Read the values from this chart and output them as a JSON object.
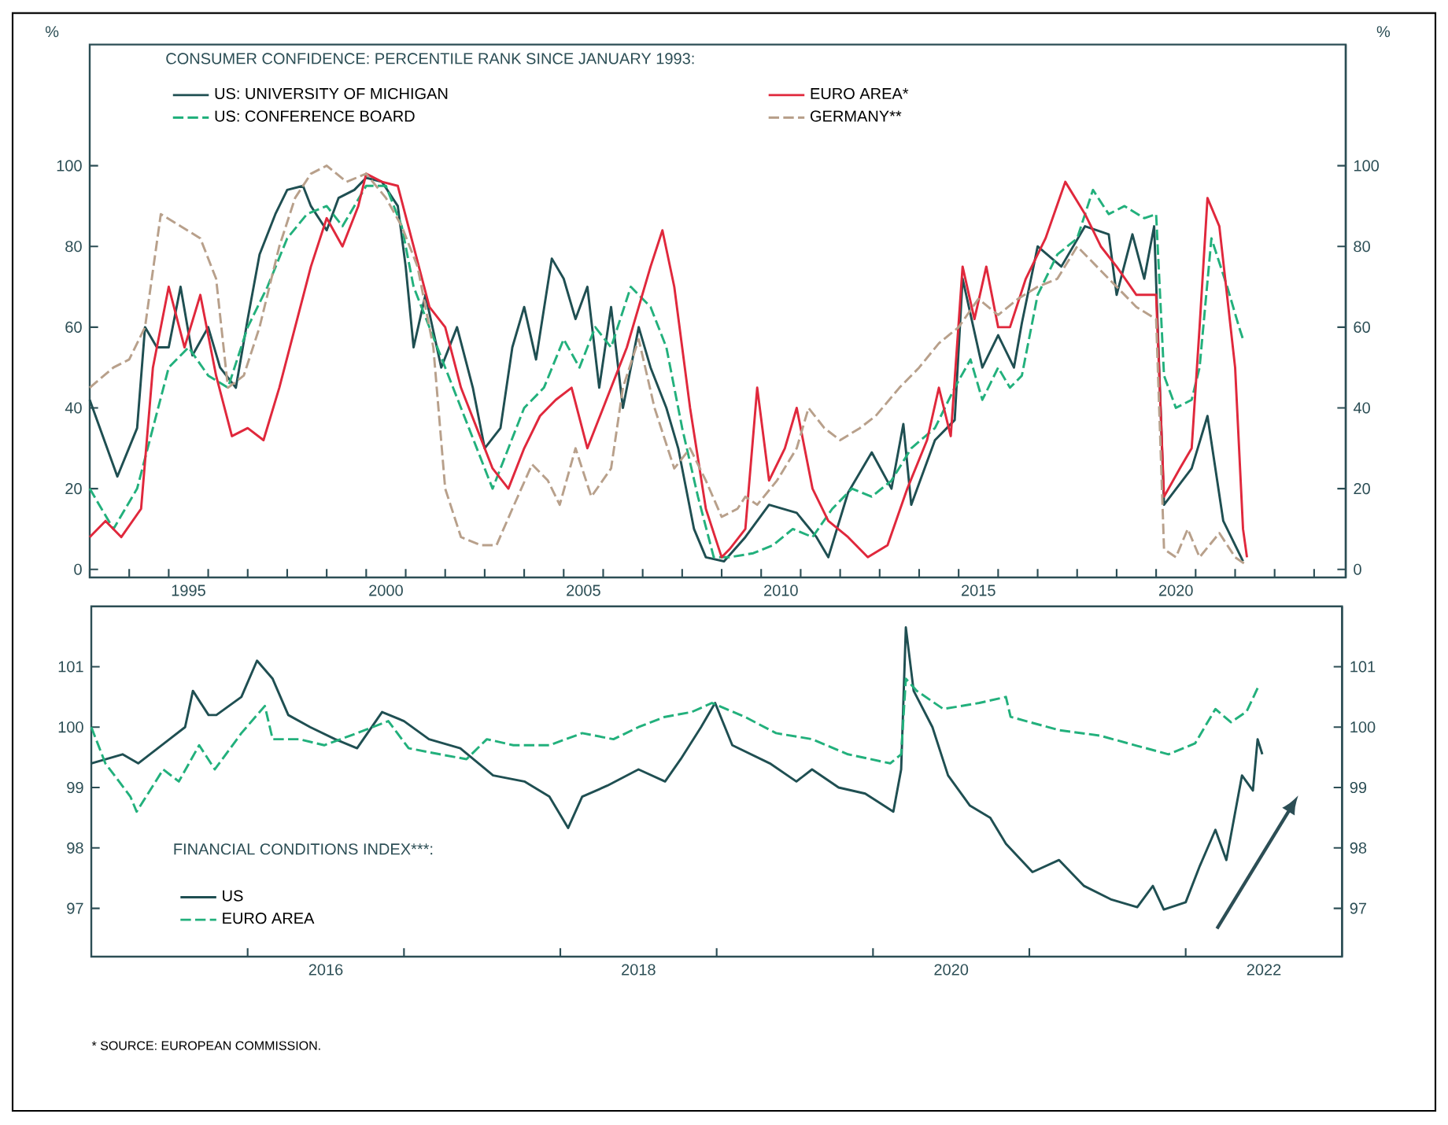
{
  "chart_data": [
    {
      "type": "line",
      "legend_title": "CONSUMER CONFIDENCE: PERCENTILE RANK SINCE JANUARY 1993:",
      "legend": "top left",
      "ylabel": "%",
      "y2label": "%",
      "xlim": [
        1993,
        2024.8
      ],
      "xticks": [
        {
          "value": 1993,
          "label": null
        },
        {
          "value": 1994,
          "label": null
        },
        {
          "value": 1995,
          "label": null
        },
        {
          "value": 1996,
          "label": null
        },
        {
          "value": 1997,
          "label": null
        },
        {
          "value": 1998,
          "label": null
        },
        {
          "value": 1999,
          "label": null
        },
        {
          "value": 2000,
          "label": null
        },
        {
          "value": 2001,
          "label": null
        },
        {
          "value": 2002,
          "label": null
        },
        {
          "value": 2003,
          "label": null
        },
        {
          "value": 2004,
          "label": null
        },
        {
          "value": 2005,
          "label": null
        },
        {
          "value": 2006,
          "label": null
        },
        {
          "value": 2007,
          "label": null
        },
        {
          "value": 2008,
          "label": null
        },
        {
          "value": 2009,
          "label": null
        },
        {
          "value": 2010,
          "label": null
        },
        {
          "value": 2011,
          "label": null
        },
        {
          "value": 2012,
          "label": null
        },
        {
          "value": 2013,
          "label": null
        },
        {
          "value": 2014,
          "label": null
        },
        {
          "value": 2015,
          "label": null
        },
        {
          "value": 2016,
          "label": null
        },
        {
          "value": 2017,
          "label": null
        },
        {
          "value": 2018,
          "label": null
        },
        {
          "value": 2019,
          "label": null
        },
        {
          "value": 2020,
          "label": null
        },
        {
          "value": 2021,
          "label": null
        },
        {
          "value": 2022,
          "label": null
        },
        {
          "value": 2023,
          "label": null
        },
        {
          "value": 2024,
          "label": null
        },
        {
          "value": 1995.5,
          "label": "1995"
        },
        {
          "value": 2000.5,
          "label": "2000"
        },
        {
          "value": 2005.5,
          "label": "2005"
        },
        {
          "value": 2010.5,
          "label": "2010"
        },
        {
          "value": 2015.5,
          "label": "2015"
        },
        {
          "value": 2020.5,
          "label": "2020"
        }
      ],
      "ylim": [
        -2,
        130
      ],
      "yticks": [
        0,
        20,
        40,
        60,
        80,
        100
      ],
      "y2lim": [
        -2,
        130
      ],
      "y2ticks": [
        0,
        20,
        40,
        60,
        80,
        100
      ],
      "series": [
        {
          "name": "US: UNIVERSITY OF MICHIGAN",
          "color": "#1f4f52",
          "line_style": "solid",
          "x": [
            1993.0,
            1993.7,
            1994.2,
            1994.4,
            1994.7,
            1995.0,
            1995.3,
            1995.6,
            1996.0,
            1996.3,
            1996.7,
            1997.0,
            1997.3,
            1997.7,
            1998.0,
            1998.4,
            1998.6,
            1999.0,
            1999.3,
            1999.7,
            2000.0,
            2000.4,
            2000.8,
            2001.0,
            2001.2,
            2001.5,
            2001.9,
            2002.3,
            2002.7,
            2003.0,
            2003.4,
            2003.7,
            2004.0,
            2004.3,
            2004.7,
            2005.0,
            2005.3,
            2005.6,
            2005.9,
            2006.2,
            2006.5,
            2006.9,
            2007.2,
            2007.6,
            2007.9,
            2008.3,
            2008.6,
            2009.06,
            2009.6,
            2010.2,
            2010.9,
            2011.4,
            2011.7,
            2012.2,
            2012.8,
            2013.3,
            2013.6,
            2013.8,
            2014.4,
            2014.9,
            2015.1,
            2015.6,
            2016.0,
            2016.4,
            2016.6,
            2017.0,
            2017.6,
            2018.2,
            2018.8,
            2019.0,
            2019.4,
            2019.7,
            2019.95,
            2020.2,
            2020.9,
            2021.3,
            2021.7,
            2022.2
          ],
          "values": [
            42,
            23,
            35,
            60,
            55,
            55,
            70,
            53,
            60,
            50,
            45,
            62,
            78,
            88,
            94,
            95,
            90,
            84,
            92,
            94,
            97,
            96,
            90,
            75,
            55,
            68,
            50,
            60,
            45,
            30,
            35,
            55,
            65,
            52,
            77,
            72,
            62,
            70,
            45,
            65,
            40,
            60,
            50,
            40,
            30,
            10,
            3,
            2,
            8,
            16,
            14,
            8,
            3,
            19,
            29,
            20,
            36,
            16,
            32,
            37,
            72,
            50,
            58,
            50,
            61,
            80,
            75,
            85,
            83,
            68,
            83,
            72,
            85,
            16,
            25,
            38,
            12,
            2
          ]
        },
        {
          "name": "US: CONFERENCE BOARD",
          "color": "#22b07c",
          "line_style": "dashed",
          "x": [
            1993.0,
            1993.6,
            1994.2,
            1994.6,
            1995.0,
            1995.5,
            1996.0,
            1996.5,
            1997.0,
            1997.5,
            1998.0,
            1998.5,
            1999.0,
            1999.4,
            2000.0,
            2000.5,
            2000.9,
            2001.2,
            2001.6,
            2002.0,
            2002.4,
            2002.8,
            2003.2,
            2003.6,
            2004.0,
            2004.5,
            2005.0,
            2005.4,
            2005.8,
            2006.2,
            2006.7,
            2007.2,
            2007.6,
            2008.0,
            2008.4,
            2008.8,
            2009.2,
            2009.8,
            2010.3,
            2010.8,
            2011.3,
            2011.8,
            2012.3,
            2012.8,
            2013.3,
            2013.8,
            2014.4,
            2014.9,
            2015.3,
            2015.6,
            2016.0,
            2016.3,
            2016.6,
            2017.0,
            2017.5,
            2018.0,
            2018.4,
            2018.8,
            2019.2,
            2019.7,
            2020.0,
            2020.2,
            2020.5,
            2020.9,
            2021.1,
            2021.4,
            2021.8,
            2022.1,
            2022.2
          ],
          "values": [
            20,
            10,
            20,
            35,
            50,
            55,
            48,
            45,
            60,
            70,
            82,
            88,
            90,
            85,
            95,
            95,
            85,
            70,
            60,
            50,
            40,
            30,
            20,
            30,
            40,
            45,
            57,
            50,
            60,
            55,
            70,
            65,
            55,
            35,
            18,
            3,
            3,
            4,
            6,
            10,
            8,
            15,
            20,
            18,
            22,
            30,
            35,
            45,
            52,
            42,
            50,
            45,
            48,
            68,
            78,
            82,
            94,
            88,
            90,
            87,
            88,
            48,
            40,
            42,
            50,
            82,
            70,
            60,
            57
          ]
        },
        {
          "name": "EURO AREA*",
          "color": "#e0283c",
          "line_style": "solid",
          "x": [
            1993.0,
            1993.4,
            1993.8,
            1994.3,
            1994.6,
            1995.0,
            1995.4,
            1995.8,
            1996.2,
            1996.6,
            1997.0,
            1997.4,
            1997.8,
            1998.2,
            1998.6,
            1999.0,
            1999.4,
            1999.8,
            2000.0,
            2000.4,
            2000.8,
            2001.2,
            2001.6,
            2002.0,
            2002.4,
            2002.8,
            2003.2,
            2003.6,
            2004.0,
            2004.4,
            2004.8,
            2005.2,
            2005.6,
            2006.0,
            2006.6,
            2007.2,
            2007.5,
            2007.8,
            2008.2,
            2008.6,
            2009.0,
            2009.2,
            2009.6,
            2009.9,
            2010.2,
            2010.6,
            2010.9,
            2011.3,
            2011.7,
            2012.2,
            2012.7,
            2013.2,
            2013.7,
            2014.2,
            2014.5,
            2014.8,
            2015.1,
            2015.4,
            2015.7,
            2016.0,
            2016.3,
            2016.7,
            2017.2,
            2017.7,
            2018.2,
            2018.6,
            2019.0,
            2019.5,
            2020.0,
            2020.2,
            2020.6,
            2020.9,
            2021.1,
            2021.3,
            2021.6,
            2022.0,
            2022.2,
            2022.3
          ],
          "values": [
            8,
            12,
            8,
            15,
            50,
            70,
            55,
            68,
            48,
            33,
            35,
            32,
            45,
            60,
            75,
            87,
            80,
            90,
            98,
            96,
            95,
            80,
            65,
            60,
            45,
            35,
            25,
            20,
            30,
            38,
            42,
            45,
            30,
            40,
            55,
            75,
            84,
            70,
            40,
            15,
            3,
            5,
            10,
            45,
            22,
            30,
            40,
            20,
            12,
            8,
            3,
            6,
            20,
            32,
            45,
            33,
            75,
            62,
            75,
            60,
            60,
            72,
            82,
            96,
            88,
            80,
            75,
            68,
            68,
            18,
            25,
            30,
            60,
            92,
            85,
            50,
            10,
            3
          ]
        },
        {
          "name": "GERMANY**",
          "color": "#b8a08b",
          "line_style": "dashed",
          "x": [
            1993.0,
            1993.6,
            1994.0,
            1994.4,
            1994.8,
            1995.3,
            1995.8,
            1996.2,
            1996.5,
            1996.9,
            1997.3,
            1997.8,
            1998.2,
            1998.6,
            1999.0,
            1999.5,
            2000.0,
            2000.5,
            2000.9,
            2001.3,
            2001.7,
            2002.0,
            2002.4,
            2002.9,
            2003.3,
            2003.7,
            2004.2,
            2004.6,
            2004.9,
            2005.3,
            2005.7,
            2006.2,
            2006.5,
            2006.9,
            2007.3,
            2007.8,
            2008.2,
            2008.6,
            2009.0,
            2009.4,
            2009.6,
            2009.9,
            2010.4,
            2010.9,
            2011.2,
            2011.6,
            2012.0,
            2012.5,
            2012.9,
            2013.5,
            2014.0,
            2014.5,
            2015.0,
            2015.5,
            2016.0,
            2016.5,
            2017.0,
            2017.5,
            2018.0,
            2018.5,
            2019.0,
            2019.5,
            2020.0,
            2020.2,
            2020.5,
            2020.8,
            2021.1,
            2021.6,
            2022.0,
            2022.3
          ],
          "values": [
            45,
            50,
            52,
            60,
            88,
            85,
            82,
            72,
            45,
            48,
            60,
            80,
            92,
            98,
            100,
            96,
            98,
            92,
            85,
            75,
            55,
            20,
            8,
            6,
            6,
            15,
            26,
            22,
            16,
            30,
            18,
            25,
            45,
            57,
            40,
            25,
            30,
            22,
            13,
            15,
            18,
            16,
            22,
            30,
            40,
            35,
            32,
            35,
            38,
            45,
            50,
            56,
            60,
            67,
            63,
            67,
            70,
            72,
            80,
            75,
            70,
            65,
            62,
            5,
            3,
            10,
            3,
            9,
            3,
            1
          ]
        }
      ]
    },
    {
      "type": "line",
      "legend_title": "FINANCIAL CONDITIONS INDEX***:",
      "legend": "bottom left",
      "xlim": [
        2015,
        2023
      ],
      "xticks": [
        {
          "value": 2016,
          "label": null
        },
        {
          "value": 2017,
          "label": null
        },
        {
          "value": 2018,
          "label": null
        },
        {
          "value": 2019,
          "label": null
        },
        {
          "value": 2020,
          "label": null
        },
        {
          "value": 2021,
          "label": null
        },
        {
          "value": 2022,
          "label": null
        },
        {
          "value": 2016.5,
          "label": "2016"
        },
        {
          "value": 2018.5,
          "label": "2018"
        },
        {
          "value": 2020.5,
          "label": "2020"
        },
        {
          "value": 2022.5,
          "label": "2022"
        }
      ],
      "ylim": [
        96.2,
        102
      ],
      "yticks": [
        97,
        98,
        99,
        100,
        101
      ],
      "y2lim": [
        96.2,
        102
      ],
      "y2ticks": [
        97,
        98,
        99,
        100,
        101
      ],
      "annotations": [
        "* SOURCE: EUROPEAN COMMISSION."
      ],
      "series": [
        {
          "name": "US",
          "color": "#1f4f52",
          "line_style": "solid",
          "x": [
            2015.0,
            2015.2,
            2015.3,
            2015.5,
            2015.6,
            2015.65,
            2015.75,
            2015.8,
            2015.96,
            2016.06,
            2016.16,
            2016.26,
            2016.4,
            2016.56,
            2016.7,
            2016.86,
            2017.0,
            2017.16,
            2017.36,
            2017.57,
            2017.77,
            2017.93,
            2018.05,
            2018.14,
            2018.3,
            2018.5,
            2018.67,
            2018.77,
            2018.9,
            2018.99,
            2019.1,
            2019.34,
            2019.51,
            2019.61,
            2019.78,
            2019.95,
            2020.13,
            2020.18,
            2020.21,
            2020.26,
            2020.38,
            2020.48,
            2020.62,
            2020.75,
            2020.85,
            2021.02,
            2021.19,
            2021.35,
            2021.52,
            2021.69,
            2021.79,
            2021.86,
            2022.0,
            2022.09,
            2022.19,
            2022.26,
            2022.36,
            2022.43,
            2022.46,
            2022.49
          ],
          "values": [
            99.4,
            99.55,
            99.4,
            99.8,
            100.0,
            100.6,
            100.2,
            100.2,
            100.5,
            101.1,
            100.8,
            100.2,
            100.0,
            99.8,
            99.65,
            100.25,
            100.1,
            99.8,
            99.65,
            99.2,
            99.1,
            98.85,
            98.33,
            98.85,
            99.03,
            99.3,
            99.1,
            99.47,
            100.0,
            100.4,
            99.7,
            99.4,
            99.1,
            99.3,
            99.0,
            98.9,
            98.6,
            99.3,
            101.65,
            100.6,
            100.0,
            99.2,
            98.7,
            98.5,
            98.07,
            97.6,
            97.8,
            97.37,
            97.15,
            97.02,
            97.37,
            96.98,
            97.1,
            97.7,
            98.3,
            97.8,
            99.2,
            98.95,
            99.8,
            99.55
          ]
        },
        {
          "name": "EURO AREA",
          "color": "#22b07c",
          "line_style": "dashed",
          "x": [
            2015.0,
            2015.09,
            2015.25,
            2015.29,
            2015.46,
            2015.56,
            2015.69,
            2015.79,
            2015.96,
            2016.11,
            2016.16,
            2016.33,
            2016.49,
            2016.7,
            2016.9,
            2017.03,
            2017.23,
            2017.4,
            2017.53,
            2017.7,
            2017.93,
            2018.14,
            2018.34,
            2018.5,
            2018.67,
            2018.84,
            2018.97,
            2019.18,
            2019.38,
            2019.61,
            2019.84,
            2020.11,
            2020.18,
            2020.21,
            2020.28,
            2020.45,
            2020.68,
            2020.85,
            2020.88,
            2021.19,
            2021.45,
            2021.69,
            2021.89,
            2022.06,
            2022.19,
            2022.29,
            2022.39,
            2022.47
          ],
          "values": [
            100.0,
            99.4,
            98.85,
            98.6,
            99.3,
            99.1,
            99.7,
            99.3,
            99.9,
            100.35,
            99.8,
            99.8,
            99.7,
            99.9,
            100.1,
            99.65,
            99.55,
            99.47,
            99.8,
            99.7,
            99.7,
            99.9,
            99.8,
            100.0,
            100.17,
            100.25,
            100.4,
            100.17,
            99.9,
            99.8,
            99.55,
            99.4,
            99.55,
            100.8,
            100.6,
            100.3,
            100.4,
            100.5,
            100.17,
            99.95,
            99.86,
            99.69,
            99.55,
            99.73,
            100.3,
            100.08,
            100.26,
            100.7
          ]
        }
      ]
    }
  ]
}
